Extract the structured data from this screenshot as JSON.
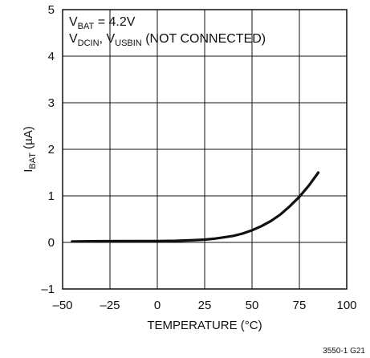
{
  "chart_data": {
    "type": "line",
    "xlabel": "TEMPERATURE (°C)",
    "ylabel": {
      "main": "I",
      "sub": "BAT",
      "rest": " (µA)"
    },
    "xlim": [
      -50,
      100
    ],
    "ylim": [
      -1,
      5
    ],
    "xticks": [
      "–50",
      "–25",
      "0",
      "25",
      "50",
      "75",
      "100"
    ],
    "yticks": [
      "–1",
      "0",
      "1",
      "2",
      "3",
      "4",
      "5"
    ],
    "grid": true,
    "annotations": {
      "line1": {
        "a": "V",
        "a_sub": "BAT",
        "b": " = 4.2V"
      },
      "line2": {
        "a": "V",
        "a_sub": "DCIN",
        "b": ", V",
        "b_sub": "USBIN",
        "c": " (NOT CONNECTED)"
      }
    },
    "figure_id": "3550-1 G21",
    "series": [
      {
        "x": [
          -45,
          -30,
          -20,
          -10,
          0,
          10,
          20,
          25,
          30,
          40,
          45,
          50,
          55,
          60,
          65,
          70,
          75,
          80,
          85
        ],
        "y": [
          0.02,
          0.025,
          0.028,
          0.03,
          0.03,
          0.035,
          0.05,
          0.06,
          0.08,
          0.14,
          0.19,
          0.26,
          0.35,
          0.46,
          0.6,
          0.78,
          0.98,
          1.22,
          1.5
        ]
      }
    ]
  }
}
